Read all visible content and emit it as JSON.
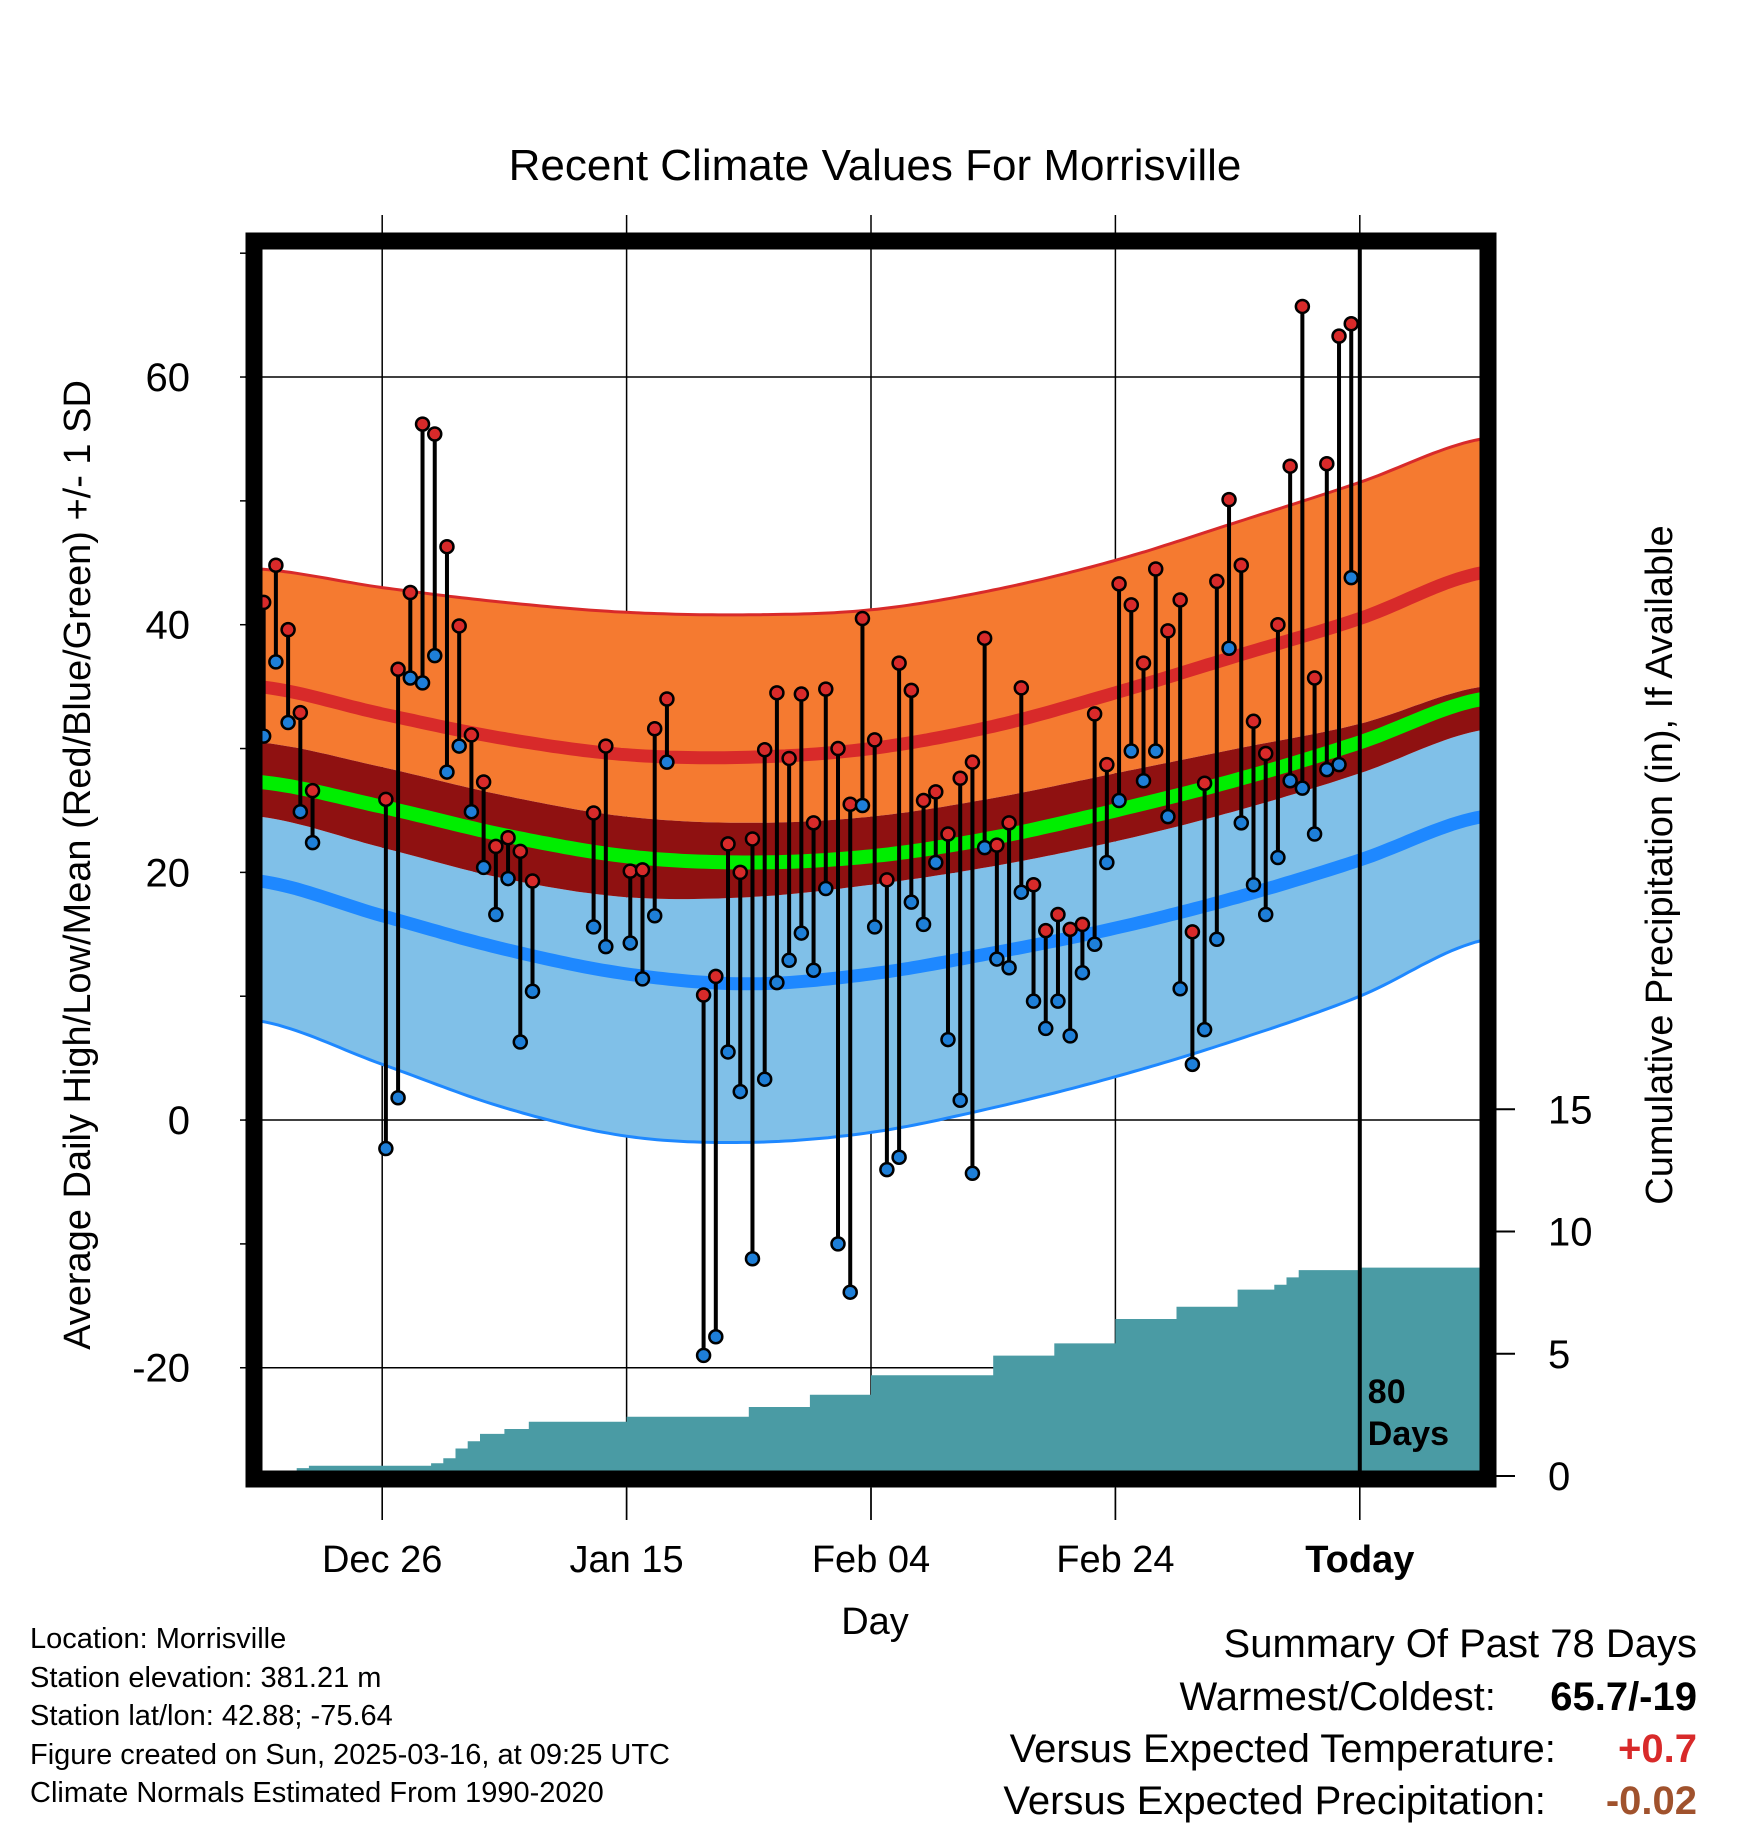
{
  "chart_data": {
    "type": "line",
    "title": "Recent Climate Values For Morrisville",
    "xlabel": "Day",
    "ylabel": "Average Daily High/Low/Mean (Red/Blue/Green) +/- 1 SD",
    "y2label": "Cumulative Precipitation (in), If Available",
    "ylim": [
      -28.5,
      70.5
    ],
    "y_ticks": [
      -20,
      0,
      20,
      40,
      60
    ],
    "y2_ticks": [
      0,
      5,
      10,
      15
    ],
    "x_tick_labels": [
      "Dec 26",
      "Jan 15",
      "Feb 04",
      "Feb 24",
      "Today"
    ],
    "today_marker_label": "80\nDays",
    "grid": true,
    "colors": {
      "high_band": "#f57a30",
      "high_mean": "#d82a2a",
      "mean_band": "#8f1111",
      "mean_line": "#00ee00",
      "low_band": "#80c0e8",
      "low_mean": "#1e88ff",
      "precip": "#4a9ba4",
      "high_dot": "#d82a2a",
      "low_dot": "#1e7fd8"
    },
    "normals": {
      "day": [
        0,
        10,
        20,
        30,
        40,
        50,
        60,
        70,
        80,
        90,
        100
      ],
      "high_plus_sd": [
        44.5,
        43.0,
        41.8,
        41.0,
        40.8,
        41.2,
        42.8,
        45.2,
        48.3,
        51.5,
        55.0
      ],
      "high_mean": [
        35.0,
        32.8,
        30.8,
        29.5,
        29.3,
        30.0,
        31.8,
        34.5,
        37.5,
        40.5,
        44.2
      ],
      "mean_plus_sd": [
        30.5,
        28.5,
        26.2,
        24.5,
        24.0,
        24.5,
        26.0,
        28.0,
        30.0,
        32.0,
        35.0
      ],
      "mean": [
        27.3,
        25.3,
        23.0,
        21.3,
        20.8,
        21.3,
        22.8,
        25.0,
        27.5,
        30.5,
        34.0
      ],
      "mean_minus_sd": [
        24.5,
        22.0,
        19.5,
        18.0,
        18.0,
        19.0,
        20.5,
        22.5,
        25.0,
        28.0,
        31.5
      ],
      "low_mean": [
        19.3,
        16.5,
        13.8,
        11.8,
        11.0,
        11.8,
        13.5,
        15.5,
        18.0,
        21.0,
        24.5
      ],
      "low_minus_sd": [
        8.0,
        4.5,
        1.0,
        -1.3,
        -1.8,
        -1.0,
        1.0,
        3.5,
        6.5,
        10.0,
        14.5
      ]
    },
    "daily": {
      "high": [
        41.8,
        44.8,
        39.6,
        32.9,
        26.6,
        null,
        null,
        null,
        null,
        null,
        25.9,
        36.4,
        42.6,
        56.2,
        55.4,
        46.3,
        39.9,
        31.1,
        27.3,
        22.1,
        22.8,
        21.7,
        19.3,
        null,
        null,
        null,
        null,
        24.8,
        30.2,
        null,
        20.1,
        20.2,
        31.6,
        34.0,
        null,
        null,
        10.1,
        11.6,
        22.3,
        20.0,
        22.7,
        29.9,
        34.5,
        29.2,
        34.4,
        24.0,
        34.8,
        30.0,
        25.5,
        40.5,
        30.7,
        19.4,
        36.9,
        34.7,
        25.8,
        26.5,
        23.1,
        27.6,
        28.9,
        38.9,
        22.2,
        24.0,
        34.9,
        19.0,
        15.3,
        16.6,
        15.4,
        15.8,
        32.8,
        28.7,
        43.3,
        41.6,
        36.9,
        44.5,
        39.5,
        42.0,
        15.2,
        27.2,
        43.5,
        50.1,
        44.8,
        32.2,
        29.6,
        40.0,
        52.8,
        65.7,
        35.7,
        53.0,
        63.3,
        64.3
      ],
      "low": [
        31.0,
        37.0,
        32.1,
        24.9,
        22.4,
        null,
        null,
        null,
        null,
        null,
        -2.3,
        1.8,
        35.7,
        35.3,
        37.5,
        28.1,
        30.2,
        24.9,
        20.4,
        16.6,
        19.5,
        6.3,
        10.4,
        null,
        null,
        null,
        null,
        15.6,
        14.0,
        null,
        14.3,
        11.4,
        16.5,
        28.9,
        null,
        null,
        -19.0,
        -17.5,
        5.5,
        2.3,
        -11.2,
        3.3,
        11.1,
        12.9,
        15.1,
        12.1,
        18.7,
        -10.0,
        -13.9,
        25.4,
        15.6,
        -4.0,
        -3.0,
        17.6,
        15.8,
        20.8,
        6.5,
        1.6,
        -4.3,
        22.0,
        13.0,
        12.3,
        18.4,
        9.6,
        7.4,
        9.6,
        6.8,
        11.9,
        14.2,
        20.8,
        25.8,
        29.8,
        27.4,
        29.8,
        24.5,
        10.6,
        4.5,
        7.3,
        14.6,
        38.1,
        24.0,
        19.0,
        16.6,
        21.2,
        27.4,
        26.8,
        23.1,
        28.3,
        28.7,
        43.8
      ]
    },
    "precip_cumulative": {
      "day": [
        0,
        3,
        4,
        14,
        15,
        16,
        17,
        18,
        20,
        22,
        30,
        40,
        45,
        50,
        60,
        65,
        70,
        75,
        80,
        83,
        84,
        85,
        90,
        95,
        100
      ],
      "value": [
        0,
        0.2,
        0.3,
        0.4,
        0.6,
        1.0,
        1.3,
        1.6,
        1.8,
        2.1,
        2.3,
        2.7,
        3.2,
        4.0,
        4.8,
        5.3,
        6.3,
        6.8,
        7.5,
        7.7,
        8.0,
        8.3,
        8.4,
        8.4,
        8.4
      ]
    }
  },
  "footer": {
    "location": "Location: Morrisville",
    "elevation": "Station elevation: 381.21 m",
    "latlon": "Station lat/lon: 42.88; -75.64",
    "created": "Figure created on Sun, 2025-03-16, at 09:25 UTC",
    "normals_period": "Climate Normals Estimated From 1990-2020"
  },
  "summary": {
    "title": "Summary Of Past 78 Days",
    "warmest_label": "Warmest/Coldest:",
    "warmest_value": "65.7/-19",
    "temp_label": "Versus Expected Temperature:",
    "temp_value": "+0.7",
    "temp_color": "#d82a2a",
    "precip_label": "Versus Expected Precipitation:",
    "precip_value": "-0.02",
    "precip_color": "#a0522d"
  }
}
